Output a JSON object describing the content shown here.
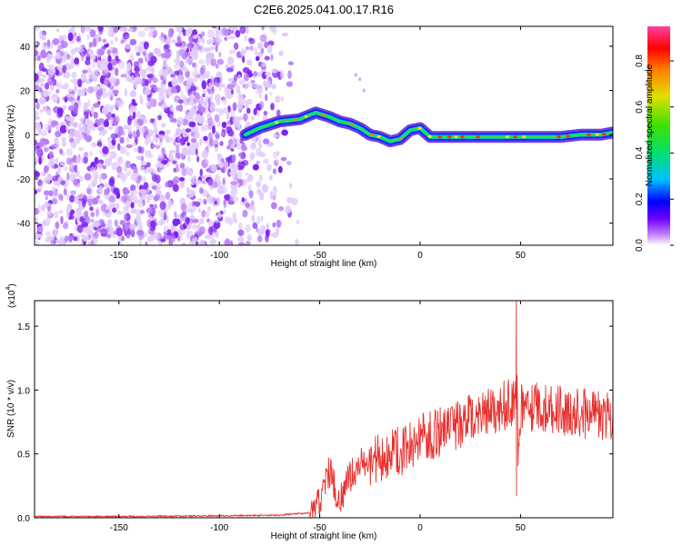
{
  "title": "C2E6.2025.041.00.17.R16",
  "chart_data": [
    {
      "type": "heatmap",
      "xlabel": "Height of straight line (km)",
      "ylabel": "Frequency (Hz)",
      "xlim": [
        -192,
        96
      ],
      "ylim": [
        -50,
        49
      ],
      "xticks": [
        -150,
        -100,
        -50,
        0,
        50
      ],
      "yticks": [
        -40,
        -20,
        0,
        20,
        40
      ],
      "ridge": {
        "x": [
          -87,
          -80,
          -70,
          -60,
          -52,
          -45,
          -40,
          -35,
          -30,
          -25,
          -20,
          -15,
          -10,
          -5,
          0,
          5,
          10,
          20,
          30,
          40,
          50,
          60,
          70,
          80,
          90,
          96
        ],
        "y": [
          0,
          3,
          6,
          7,
          10,
          8,
          6,
          5,
          3,
          0,
          -1,
          -3,
          -2,
          2,
          3,
          -1,
          -1,
          -1,
          -1,
          -1,
          -1,
          -1,
          -1,
          0,
          0,
          1
        ]
      },
      "colorbar": {
        "label": "Normalized spectral amplitude",
        "ticks": [
          0.0,
          0.2,
          0.4,
          0.6,
          0.8
        ],
        "tick_labels": [
          "0.0",
          "0.2",
          "0.4",
          "0.6",
          "0.8"
        ],
        "range": [
          0,
          0.95
        ]
      }
    },
    {
      "type": "line",
      "xlabel": "Height of straight line (km)",
      "ylabel": "SNR (10 * v/v)",
      "scale_exponent": "(x10",
      "scale_power": "4",
      "scale_close": ")",
      "xlim": [
        -192,
        96
      ],
      "ylim": [
        0,
        1.7
      ],
      "xticks": [
        -150,
        -100,
        -50,
        0,
        50
      ],
      "yticks": [
        0.0,
        0.5,
        1.0,
        1.5
      ],
      "ytick_labels": [
        "0.0",
        "0.5",
        "1.0",
        "1.5"
      ],
      "color": "#e8312f",
      "series": [
        {
          "x": [
            -192,
            -150,
            -100,
            -70,
            -55,
            -50,
            -48,
            -45,
            -42,
            -40,
            -35,
            -30,
            -20,
            -10,
            0,
            10,
            20,
            30,
            40,
            45,
            47,
            48,
            50,
            60,
            70,
            80,
            90,
            96
          ],
          "y": [
            0.01,
            0.01,
            0.015,
            0.02,
            0.04,
            0.1,
            0.25,
            0.35,
            0.2,
            0.12,
            0.3,
            0.4,
            0.45,
            0.5,
            0.6,
            0.65,
            0.72,
            0.8,
            0.85,
            0.88,
            0.9,
            0.3,
            0.85,
            0.85,
            0.82,
            0.8,
            0.78,
            0.78
          ]
        }
      ],
      "annotations": [
        {
          "x": 48,
          "y": 1.7,
          "note": "spike"
        },
        {
          "x": 48,
          "y": 0.17,
          "note": "dip"
        }
      ]
    }
  ]
}
